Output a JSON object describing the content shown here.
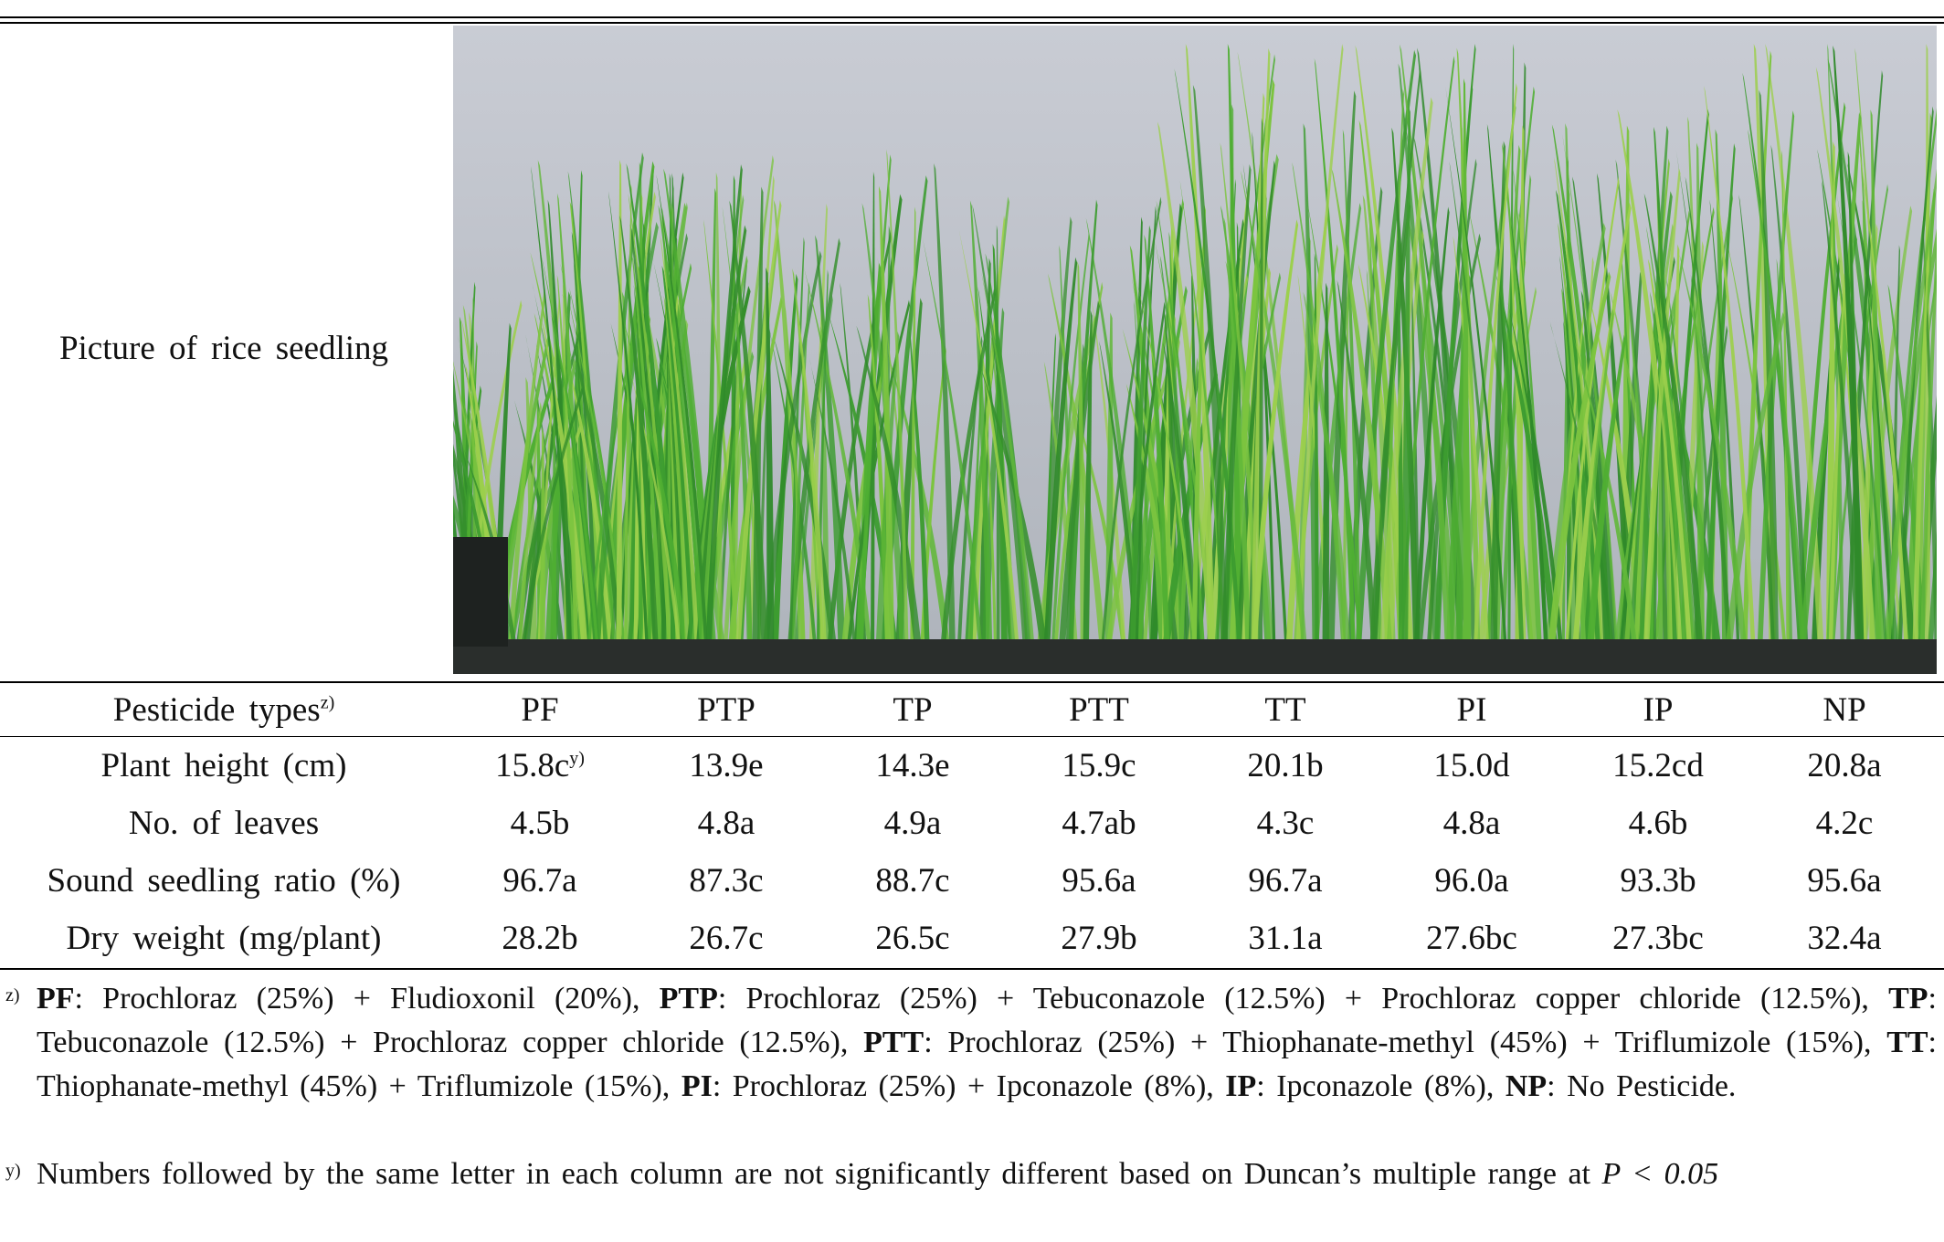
{
  "picture_label": "Picture of rice seedling",
  "table": {
    "header": {
      "label": "Pesticide types",
      "label_sup": "z)",
      "columns": [
        "PF",
        "PTP",
        "TP",
        "PTT",
        "TT",
        "PI",
        "IP",
        "NP"
      ]
    },
    "rows": [
      {
        "label": "Plant height (cm)",
        "values": [
          "15.8c",
          "13.9e",
          "14.3e",
          "15.9c",
          "20.1b",
          "15.0d",
          "15.2cd",
          "20.8a"
        ],
        "first_sup": "y)"
      },
      {
        "label": "No. of leaves",
        "values": [
          "4.5b",
          "4.8a",
          "4.9a",
          "4.7ab",
          "4.3c",
          "4.8a",
          "4.6b",
          "4.2c"
        ]
      },
      {
        "label": "Sound seedling ratio (%)",
        "values": [
          "96.7a",
          "87.3c",
          "88.7c",
          "95.6a",
          "96.7a",
          "96.0a",
          "93.3b",
          "95.6a"
        ]
      },
      {
        "label": "Dry weight (mg/plant)",
        "values": [
          "28.2b",
          "26.7c",
          "26.5c",
          "27.9b",
          "31.1a",
          "27.6bc",
          "27.3bc",
          "32.4a"
        ]
      }
    ]
  },
  "footnotes": {
    "z": {
      "marker": "z)",
      "items": [
        {
          "abbr": "PF",
          "text": ": Prochloraz (25%) + Fludioxonil (20%), "
        },
        {
          "abbr": "PTP",
          "text": ": Prochloraz (25%) + Tebuconazole (12.5%) + Prochloraz copper chloride (12.5%), "
        },
        {
          "abbr": "TP",
          "text": ": Tebuconazole (12.5%) + Prochloraz copper chloride (12.5%), "
        },
        {
          "abbr": "PTT",
          "text": ": Prochloraz (25%) + Thiophanate-methyl (45%) + Triflumizole (15%), "
        },
        {
          "abbr": "TT",
          "text": ": Thiophanate-methyl (45%) + Triflumizole (15%), "
        },
        {
          "abbr": "PI",
          "text": ": Prochloraz (25%) + Ipconazole (8%), "
        },
        {
          "abbr": "IP",
          "text": ": Ipconazole (8%), "
        },
        {
          "abbr": "NP",
          "text": ": No Pesticide."
        }
      ]
    },
    "y": {
      "marker": "y)",
      "text": "Numbers followed by the same letter in each column are not significantly different based on Duncan’s multiple range at ",
      "italic": "P < 0.05"
    }
  },
  "colors": {
    "wall": "#bfc3cc",
    "grass_dark": "#2f8a2a",
    "grass_mid": "#4fae32",
    "grass_light": "#9ccf4c",
    "tray": "#2a2e2c"
  }
}
